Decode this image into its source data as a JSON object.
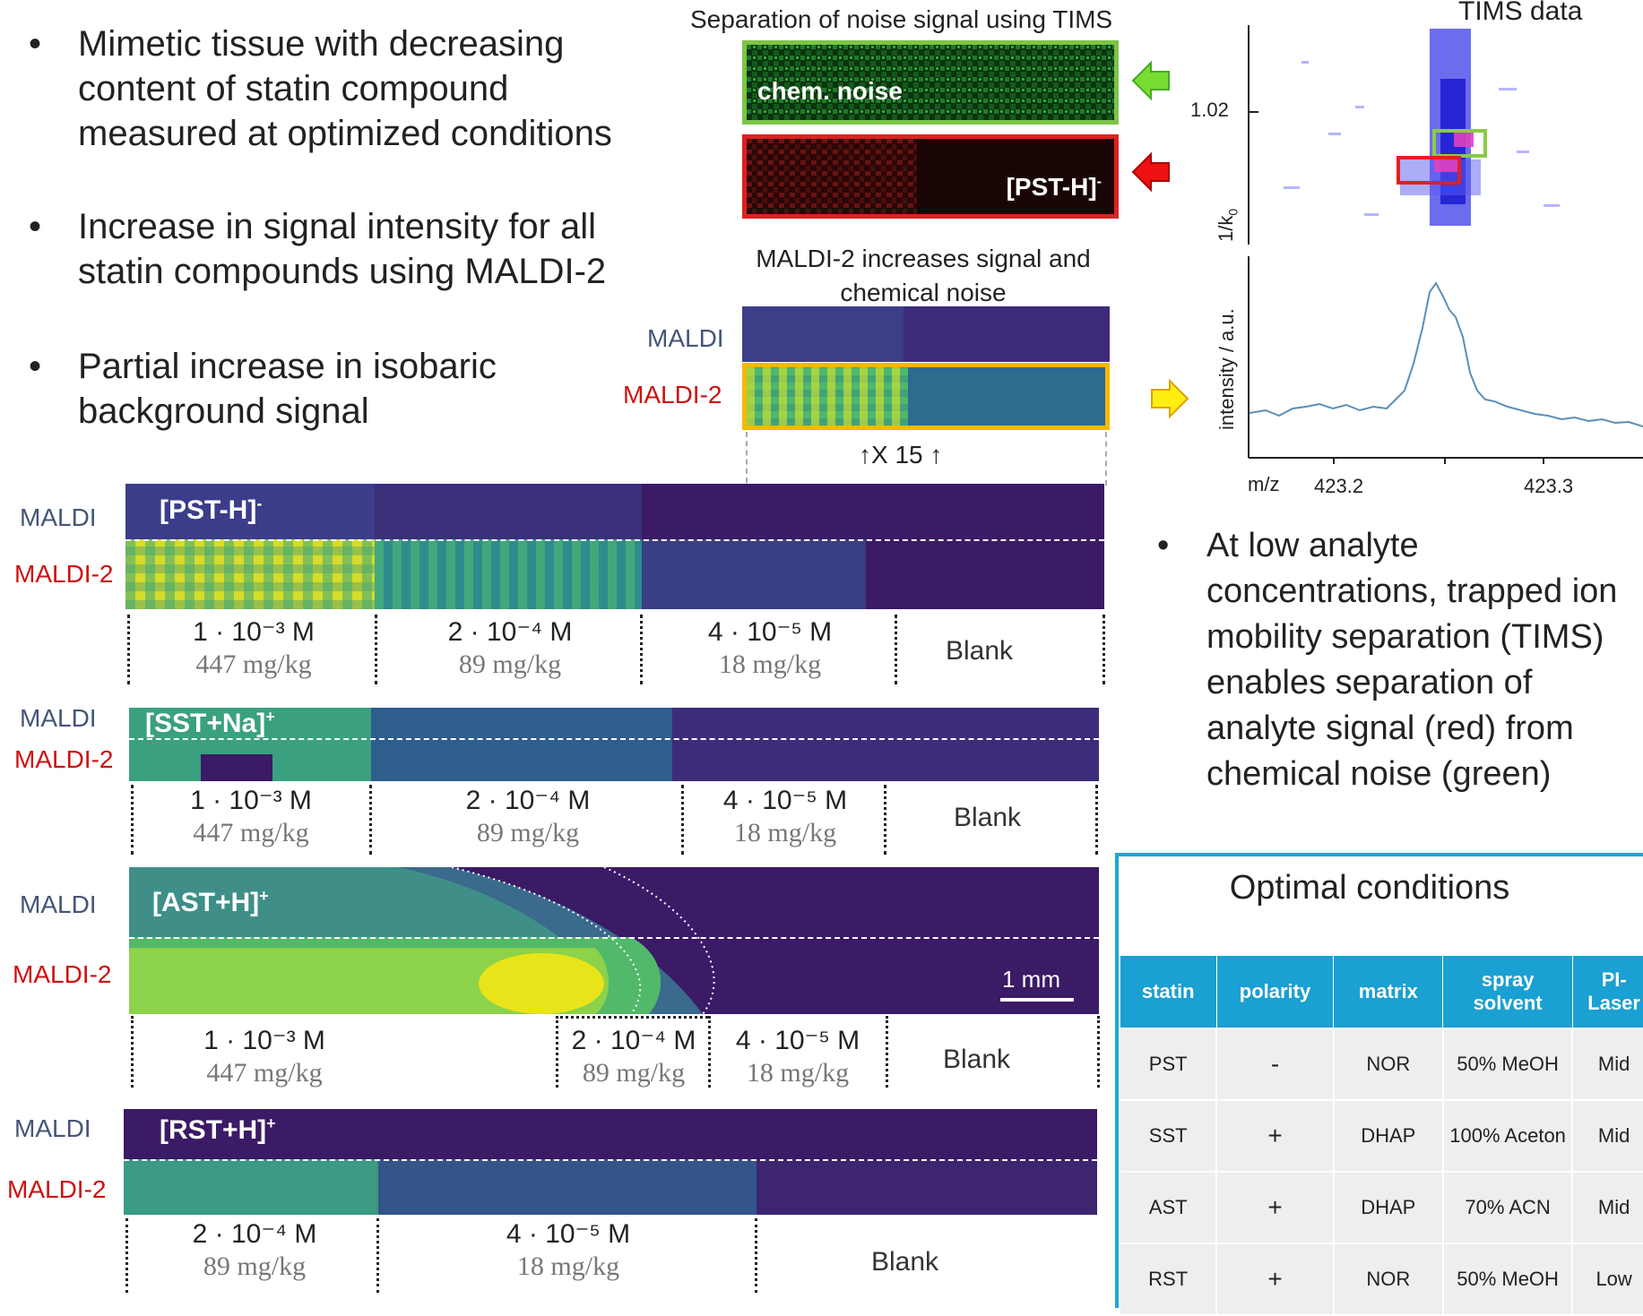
{
  "bullets": [
    "Mimetic tissue with decreasing content of statin compound measured at optimized conditions",
    "Increase in signal intensity for all statin compounds using MALDI-2",
    "Partial increase in isobaric background signal"
  ],
  "tims_sep": {
    "title": "Separation of noise signal using TIMS",
    "noise_label": "chem. noise",
    "pst_label": "[PST-H]",
    "pst_sup": "-"
  },
  "maldi2_box": {
    "title_line1": "MALDI-2 increases signal and",
    "title_line2": "chemical noise",
    "maldi": "MALDI",
    "maldi2": "MALDI-2",
    "factor": "X 15"
  },
  "tims_plot": {
    "title": "TIMS data",
    "ytick": "1.02",
    "ylabel_top": "1/k",
    "ylabel_top_sub": "0",
    "ylabel_bottom": "intensity / a.u.",
    "xlabel": "m/z",
    "xticks": [
      "423.2",
      "423.3"
    ]
  },
  "tims_bullet": "At low analyte concentrations, trapped ion mobility separation (TIMS) enables separation of analyte signal (red) from chemical noise (green)",
  "strips": [
    {
      "ion": "[PST-H]",
      "sup": "-",
      "maldi": "MALDI",
      "maldi2": "MALDI-2",
      "concs": [
        {
          "m": "1 · 10⁻³ M",
          "mg": "447 mg/kg"
        },
        {
          "m": "2 · 10⁻⁴ M",
          "mg": "89 mg/kg"
        },
        {
          "m": "4 · 10⁻⁵ M",
          "mg": "18 mg/kg"
        }
      ],
      "blank": "Blank"
    },
    {
      "ion": "[SST+Na]",
      "sup": "+",
      "maldi": "MALDI",
      "maldi2": "MALDI-2",
      "concs": [
        {
          "m": "1 · 10⁻³ M",
          "mg": "447 mg/kg"
        },
        {
          "m": "2 · 10⁻⁴ M",
          "mg": "89 mg/kg"
        },
        {
          "m": "4 · 10⁻⁵ M",
          "mg": "18 mg/kg"
        }
      ],
      "blank": "Blank"
    },
    {
      "ion": "[AST+H]",
      "sup": "+",
      "maldi": "MALDI",
      "maldi2": "MALDI-2",
      "scale": "1 mm",
      "concs": [
        {
          "m": "1 · 10⁻³ M",
          "mg": "447 mg/kg"
        },
        {
          "m": "2 · 10⁻⁴ M",
          "mg": "89 mg/kg"
        },
        {
          "m": "4 · 10⁻⁵ M",
          "mg": "18 mg/kg"
        }
      ],
      "blank": "Blank"
    },
    {
      "ion": "[RST+H]",
      "sup": "+",
      "maldi": "MALDI",
      "maldi2": "MALDI-2",
      "concs": [
        {
          "m": "2 · 10⁻⁴ M",
          "mg": "89 mg/kg"
        },
        {
          "m": "4 · 10⁻⁵ M",
          "mg": "18 mg/kg"
        }
      ],
      "blank": "Blank"
    }
  ],
  "conditions": {
    "title": "Optimal conditions",
    "headers": [
      "statin",
      "polarity",
      "matrix",
      "spray solvent",
      "PI-Laser"
    ],
    "rows": [
      [
        "PST",
        "-",
        "NOR",
        "50% MeOH",
        "Mid"
      ],
      [
        "SST",
        "+",
        "DHAP",
        "100% Aceton",
        "Mid"
      ],
      [
        "AST",
        "+",
        "DHAP",
        "70% ACN",
        "Mid"
      ],
      [
        "RST",
        "+",
        "NOR",
        "50% MeOH",
        "Low"
      ]
    ]
  },
  "colors": {
    "viridis_dark": "#3b1a66",
    "viridis_mid": "#2a6e8e",
    "viridis_green": "#3fb37a",
    "viridis_yellow": "#e8e419",
    "maldi_label": "#445577",
    "maldi2_label": "#cc1111",
    "table_header": "#1aa0d2",
    "arrow_green": "#66cc33",
    "arrow_red": "#e00000",
    "arrow_yellow": "#ffee11"
  }
}
